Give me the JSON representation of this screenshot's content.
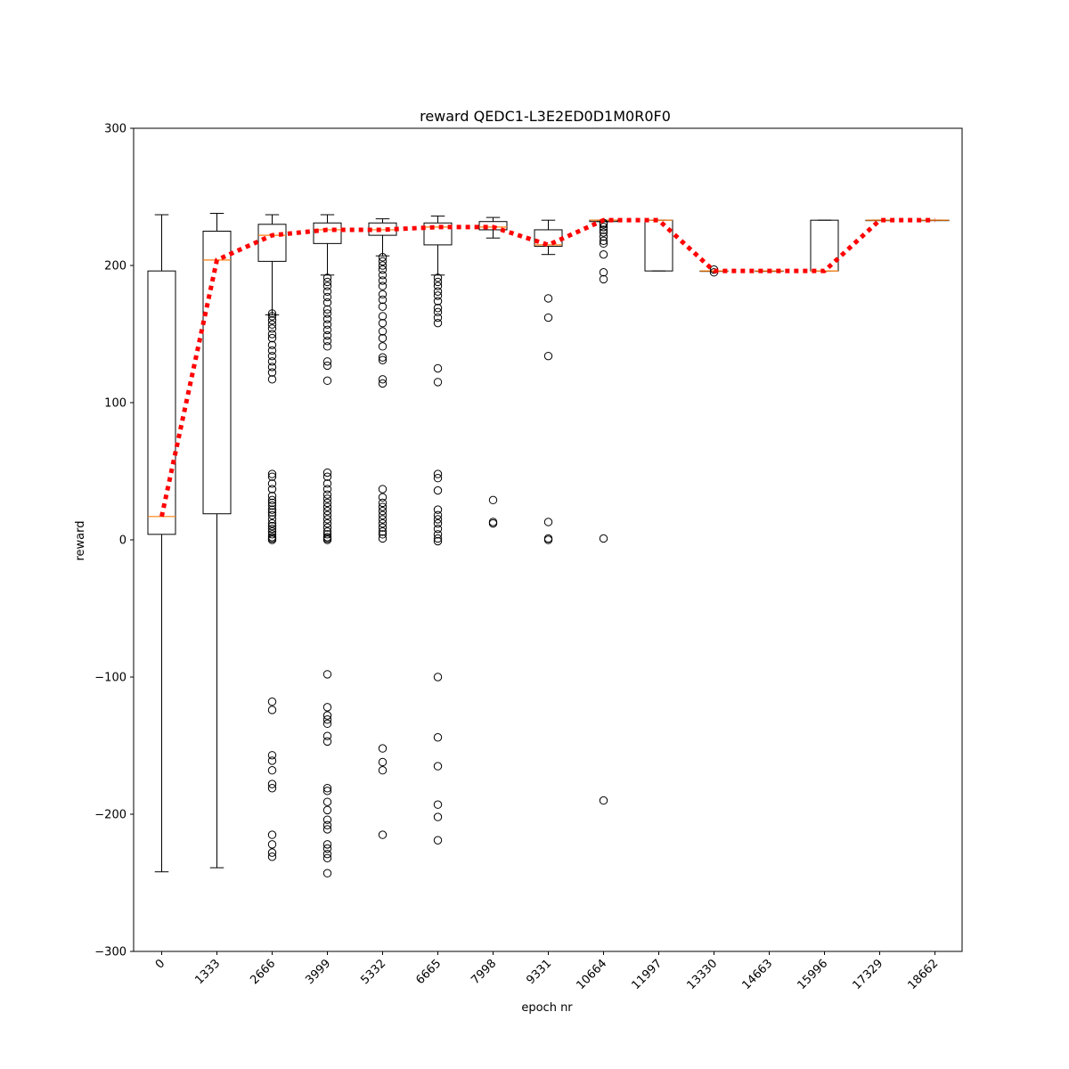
{
  "chart_data": {
    "type": "box",
    "title": "reward QEDC1-L3E2ED0D1M0R0F0",
    "xlabel": "epoch nr",
    "ylabel": "reward",
    "ylim": [
      -300,
      300
    ],
    "yticks": [
      -300,
      -200,
      -100,
      0,
      100,
      200,
      300
    ],
    "grid": false,
    "categories": [
      "0",
      "1333",
      "2666",
      "3999",
      "5332",
      "6665",
      "7998",
      "9331",
      "10664",
      "11997",
      "13330",
      "14663",
      "15996",
      "17329",
      "18662"
    ],
    "boxes": [
      {
        "q1": 4,
        "median": 17,
        "q3": 196,
        "whisker_low": -242,
        "whisker_high": 237,
        "outliers": []
      },
      {
        "q1": 19,
        "median": 204,
        "q3": 225,
        "whisker_low": -239,
        "whisker_high": 238,
        "outliers": []
      },
      {
        "q1": 203,
        "median": 222,
        "q3": 230,
        "whisker_low": 164,
        "whisker_high": 237,
        "outliers": [
          165,
          163,
          160,
          157,
          154,
          150,
          147,
          142,
          138,
          134,
          130,
          126,
          122,
          117,
          48,
          46,
          41,
          37,
          32,
          29,
          27,
          25,
          22,
          20,
          18,
          15,
          12,
          10,
          8,
          6,
          4,
          2,
          1,
          0,
          -118,
          -124,
          -157,
          -161,
          -168,
          -178,
          -181,
          -215,
          -222,
          -228,
          -231
        ]
      },
      {
        "q1": 216,
        "median": 226,
        "q3": 231,
        "whisker_low": 193,
        "whisker_high": 237,
        "outliers": [
          191,
          188,
          185,
          181,
          177,
          173,
          168,
          165,
          161,
          157,
          153,
          149,
          145,
          141,
          130,
          127,
          116,
          49,
          46,
          41,
          37,
          33,
          30,
          27,
          24,
          21,
          18,
          15,
          12,
          9,
          6,
          4,
          2,
          1,
          0,
          -98,
          -122,
          -128,
          -131,
          -134,
          -143,
          -147,
          -181,
          -183,
          -191,
          -197,
          -204,
          -208,
          -211,
          -222,
          -225,
          -229,
          -232,
          -243
        ]
      },
      {
        "q1": 222,
        "median": 226,
        "q3": 231,
        "whisker_low": 207,
        "whisker_high": 234,
        "outliers": [
          206,
          203,
          200,
          197,
          193,
          189,
          185,
          179,
          175,
          170,
          163,
          158,
          152,
          147,
          141,
          133,
          131,
          117,
          114,
          37,
          31,
          27,
          24,
          21,
          18,
          15,
          12,
          9,
          6,
          4,
          1,
          -152,
          -162,
          -168,
          -215
        ]
      },
      {
        "q1": 215,
        "median": 228,
        "q3": 231,
        "whisker_low": 193,
        "whisker_high": 236,
        "outliers": [
          191,
          188,
          185,
          181,
          178,
          174,
          169,
          166,
          162,
          158,
          125,
          115,
          48,
          45,
          36,
          22,
          18,
          15,
          12,
          8,
          4,
          1,
          -1,
          -100,
          -144,
          -165,
          -193,
          -202,
          -219
        ]
      },
      {
        "q1": 226,
        "median": 228,
        "q3": 232,
        "whisker_low": 220,
        "whisker_high": 235,
        "outliers": [
          29,
          13,
          12
        ]
      },
      {
        "q1": 214,
        "median": 215,
        "q3": 226,
        "whisker_low": 208,
        "whisker_high": 233,
        "outliers": [
          176,
          162,
          134,
          13,
          1,
          0
        ]
      },
      {
        "q1": 232,
        "median": 233,
        "q3": 233,
        "whisker_low": 232,
        "whisker_high": 233,
        "outliers": [
          231,
          230,
          228,
          226,
          224,
          221,
          218,
          216,
          208,
          195,
          190,
          1,
          -190
        ]
      },
      {
        "q1": 196,
        "median": 233,
        "q3": 233,
        "whisker_low": 196,
        "whisker_high": 233,
        "outliers": []
      },
      {
        "q1": 196,
        "median": 196,
        "q3": 196,
        "whisker_low": 196,
        "whisker_high": 196,
        "outliers": [
          197,
          195
        ]
      },
      {
        "q1": 196,
        "median": 196,
        "q3": 196,
        "whisker_low": 196,
        "whisker_high": 196,
        "outliers": []
      },
      {
        "q1": 196,
        "median": 196,
        "q3": 233,
        "whisker_low": 196,
        "whisker_high": 233,
        "outliers": []
      },
      {
        "q1": 233,
        "median": 233,
        "q3": 233,
        "whisker_low": 233,
        "whisker_high": 233,
        "outliers": []
      },
      {
        "q1": 233,
        "median": 233,
        "q3": 233,
        "whisker_low": 233,
        "whisker_high": 233,
        "outliers": []
      }
    ],
    "median_line": [
      17,
      204,
      222,
      226,
      226,
      228,
      228,
      215,
      233,
      233,
      196,
      196,
      196,
      233,
      233
    ],
    "colors": {
      "box": "#000000",
      "median": "#ff7f0e",
      "trend": "#ff0000",
      "outlier": "#000000",
      "background": "#ffffff"
    }
  }
}
